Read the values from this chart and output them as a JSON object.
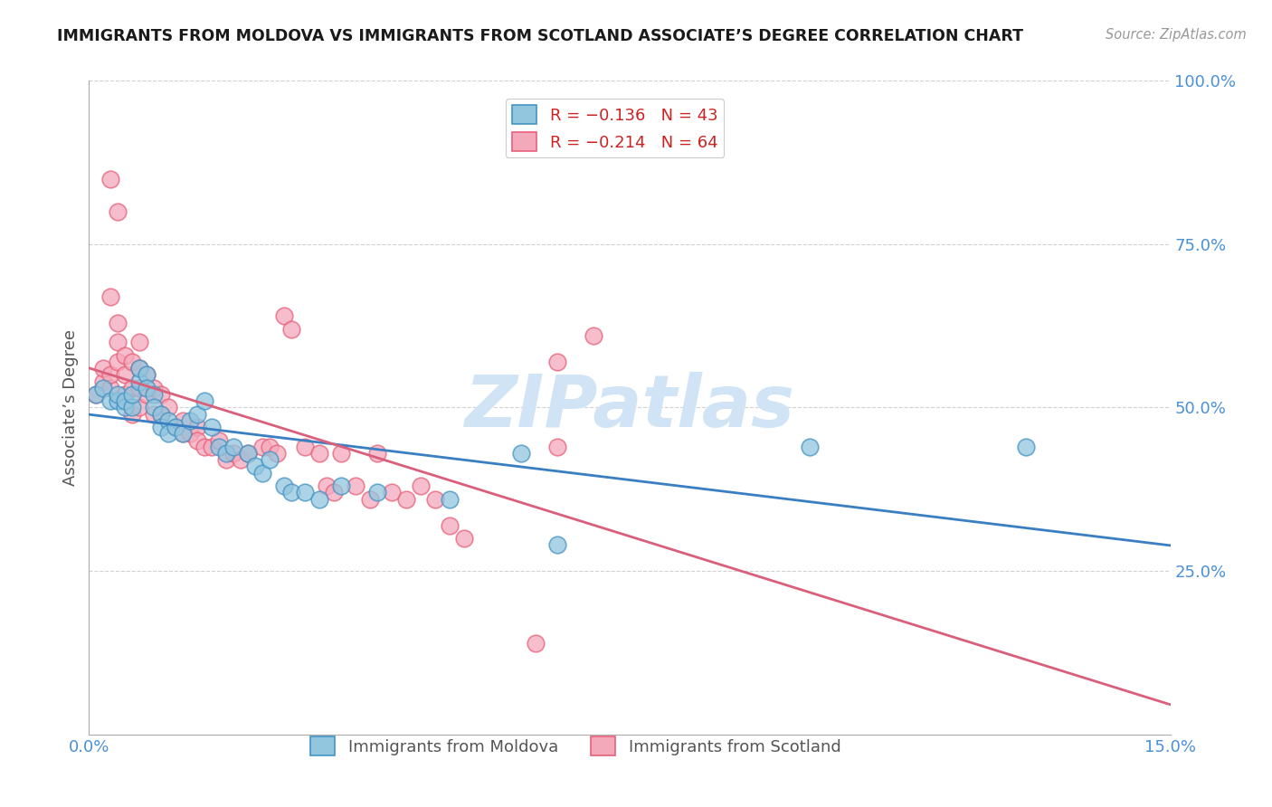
{
  "title": "IMMIGRANTS FROM MOLDOVA VS IMMIGRANTS FROM SCOTLAND ASSOCIATE’S DEGREE CORRELATION CHART",
  "source": "Source: ZipAtlas.com",
  "ylabel": "Associate’s Degree",
  "xlim": [
    0.0,
    0.15
  ],
  "ylim": [
    0.0,
    1.0
  ],
  "ytick_positions": [
    0.25,
    0.5,
    0.75,
    1.0
  ],
  "ytick_labels": [
    "25.0%",
    "50.0%",
    "75.0%",
    "100.0%"
  ],
  "xtick_positions": [
    0.0,
    0.15
  ],
  "xtick_labels": [
    "0.0%",
    "15.0%"
  ],
  "legend1_text": "R = −0.136   N = 43",
  "legend2_text": "R = −0.214   N = 64",
  "moldova_color": "#92c5de",
  "scotland_color": "#f4a9bb",
  "moldova_edge": "#4393c3",
  "scotland_edge": "#e8607a",
  "line_moldova_color": "#3a7fc1",
  "line_scotland_color": "#d95f7a",
  "watermark": "ZIPatlas",
  "watermark_color": "#d0e4f5",
  "moldova_points": [
    [
      0.001,
      0.52
    ],
    [
      0.002,
      0.53
    ],
    [
      0.003,
      0.51
    ],
    [
      0.004,
      0.51
    ],
    [
      0.004,
      0.52
    ],
    [
      0.005,
      0.5
    ],
    [
      0.005,
      0.51
    ],
    [
      0.006,
      0.5
    ],
    [
      0.006,
      0.52
    ],
    [
      0.007,
      0.54
    ],
    [
      0.007,
      0.56
    ],
    [
      0.008,
      0.55
    ],
    [
      0.008,
      0.53
    ],
    [
      0.009,
      0.52
    ],
    [
      0.009,
      0.5
    ],
    [
      0.01,
      0.49
    ],
    [
      0.01,
      0.47
    ],
    [
      0.011,
      0.48
    ],
    [
      0.011,
      0.46
    ],
    [
      0.012,
      0.47
    ],
    [
      0.013,
      0.46
    ],
    [
      0.014,
      0.48
    ],
    [
      0.015,
      0.49
    ],
    [
      0.016,
      0.51
    ],
    [
      0.017,
      0.47
    ],
    [
      0.018,
      0.44
    ],
    [
      0.019,
      0.43
    ],
    [
      0.02,
      0.44
    ],
    [
      0.022,
      0.43
    ],
    [
      0.023,
      0.41
    ],
    [
      0.024,
      0.4
    ],
    [
      0.025,
      0.42
    ],
    [
      0.027,
      0.38
    ],
    [
      0.028,
      0.37
    ],
    [
      0.03,
      0.37
    ],
    [
      0.032,
      0.36
    ],
    [
      0.035,
      0.38
    ],
    [
      0.04,
      0.37
    ],
    [
      0.05,
      0.36
    ],
    [
      0.06,
      0.43
    ],
    [
      0.065,
      0.29
    ],
    [
      0.1,
      0.44
    ],
    [
      0.13,
      0.44
    ]
  ],
  "scotland_points": [
    [
      0.001,
      0.52
    ],
    [
      0.002,
      0.54
    ],
    [
      0.002,
      0.56
    ],
    [
      0.003,
      0.53
    ],
    [
      0.003,
      0.55
    ],
    [
      0.003,
      0.67
    ],
    [
      0.004,
      0.57
    ],
    [
      0.004,
      0.6
    ],
    [
      0.004,
      0.63
    ],
    [
      0.005,
      0.58
    ],
    [
      0.005,
      0.55
    ],
    [
      0.005,
      0.52
    ],
    [
      0.006,
      0.57
    ],
    [
      0.006,
      0.53
    ],
    [
      0.006,
      0.49
    ],
    [
      0.007,
      0.6
    ],
    [
      0.007,
      0.56
    ],
    [
      0.007,
      0.53
    ],
    [
      0.007,
      0.5
    ],
    [
      0.008,
      0.55
    ],
    [
      0.008,
      0.52
    ],
    [
      0.009,
      0.53
    ],
    [
      0.009,
      0.49
    ],
    [
      0.01,
      0.52
    ],
    [
      0.01,
      0.49
    ],
    [
      0.011,
      0.5
    ],
    [
      0.012,
      0.47
    ],
    [
      0.013,
      0.48
    ],
    [
      0.013,
      0.46
    ],
    [
      0.014,
      0.46
    ],
    [
      0.015,
      0.47
    ],
    [
      0.015,
      0.45
    ],
    [
      0.016,
      0.44
    ],
    [
      0.017,
      0.44
    ],
    [
      0.018,
      0.45
    ],
    [
      0.019,
      0.42
    ],
    [
      0.02,
      0.43
    ],
    [
      0.021,
      0.42
    ],
    [
      0.022,
      0.43
    ],
    [
      0.024,
      0.44
    ],
    [
      0.025,
      0.44
    ],
    [
      0.026,
      0.43
    ],
    [
      0.027,
      0.64
    ],
    [
      0.028,
      0.62
    ],
    [
      0.03,
      0.44
    ],
    [
      0.032,
      0.43
    ],
    [
      0.033,
      0.38
    ],
    [
      0.034,
      0.37
    ],
    [
      0.035,
      0.43
    ],
    [
      0.037,
      0.38
    ],
    [
      0.039,
      0.36
    ],
    [
      0.04,
      0.43
    ],
    [
      0.042,
      0.37
    ],
    [
      0.044,
      0.36
    ],
    [
      0.046,
      0.38
    ],
    [
      0.048,
      0.36
    ],
    [
      0.05,
      0.32
    ],
    [
      0.052,
      0.3
    ],
    [
      0.062,
      0.14
    ],
    [
      0.065,
      0.44
    ],
    [
      0.065,
      0.57
    ],
    [
      0.07,
      0.61
    ],
    [
      0.003,
      0.85
    ],
    [
      0.004,
      0.8
    ]
  ]
}
